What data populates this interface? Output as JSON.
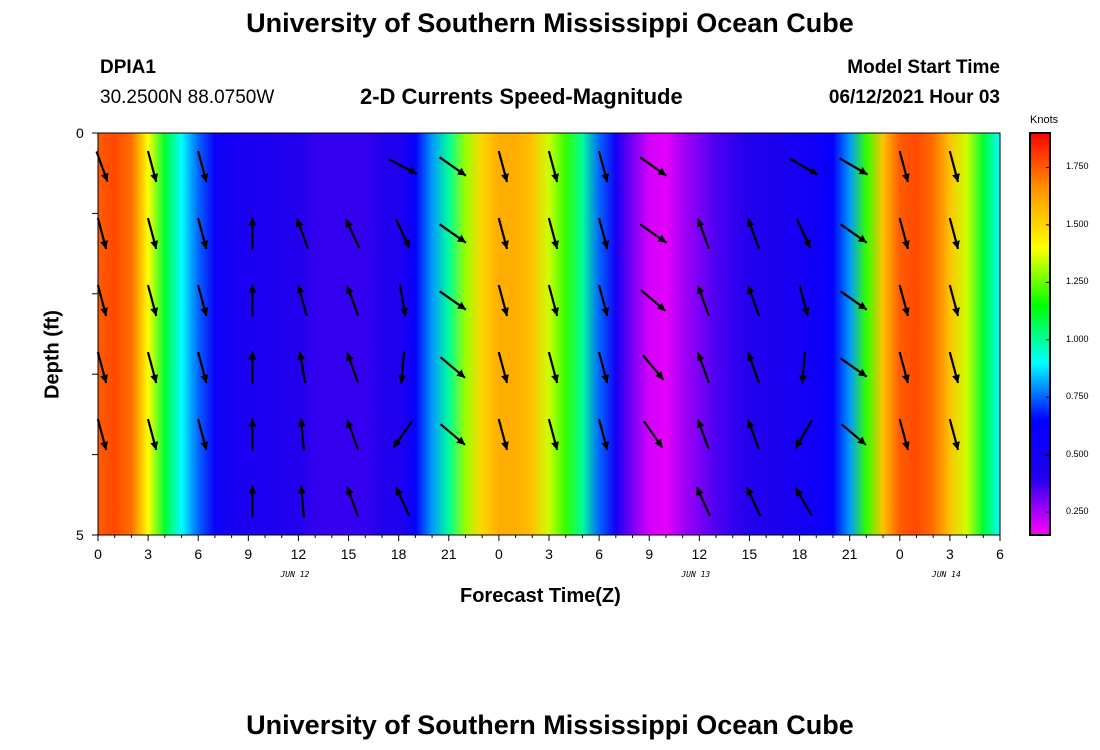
{
  "page": {
    "title_top": "University of Southern Mississippi Ocean Cube",
    "title_bottom": "University of Southern Mississippi Ocean Cube",
    "station_id": "DPIA1",
    "station_coords": "30.2500N  88.0750W",
    "chart_subtitle": "2-D Currents Speed-Magnitude",
    "model_start_label": "Model Start Time",
    "model_start_value": "06/12/2021 Hour 03"
  },
  "colors": {
    "arrow": "#000000",
    "axis": "#000000",
    "scale": [
      "#ff00ff",
      "#2200ee",
      "#0000ff",
      "#00ffff",
      "#00ff00",
      "#ffff00",
      "#ff9900",
      "#ff0000"
    ]
  },
  "chart_data": {
    "type": "heatmap",
    "title": "2-D Currents Speed-Magnitude",
    "xlabel": "Forecast Time(Z)",
    "ylabel": "Depth (ft)",
    "x_ticks": [
      "0",
      "3",
      "6",
      "9",
      "12",
      "15",
      "18",
      "21",
      "0",
      "3",
      "6",
      "9",
      "12",
      "15",
      "18",
      "21",
      "0",
      "3",
      "6"
    ],
    "x_range_hours": [
      0,
      54
    ],
    "date_labels": [
      {
        "text": "JUN 12",
        "hour": 12
      },
      {
        "text": "JUN 13",
        "hour": 36
      },
      {
        "text": "JUN 14",
        "hour": 51
      }
    ],
    "y_ticks": [
      "0",
      "5"
    ],
    "y_range": [
      0,
      5
    ],
    "depth_levels": 5,
    "colorbar": {
      "units": "Knots",
      "range": [
        0.15,
        1.9
      ],
      "ticks": [
        "1.750",
        "1.500",
        "1.250",
        "1.000",
        "0.750",
        "0.500",
        "0.250"
      ],
      "tick_values": [
        1.75,
        1.5,
        1.25,
        1.0,
        0.75,
        0.5,
        0.25
      ]
    },
    "profile_hours": [
      0,
      1,
      2,
      3,
      4,
      5,
      6,
      7,
      8,
      9,
      10,
      11,
      12,
      13,
      14,
      15,
      16,
      17,
      18,
      19,
      20,
      21,
      22,
      23,
      24,
      25,
      26,
      27,
      28,
      29,
      30,
      31,
      32,
      33,
      34,
      35,
      36,
      37,
      38,
      39,
      40,
      41,
      42,
      43,
      44,
      45,
      46,
      47,
      48,
      49,
      50,
      51,
      52,
      53,
      54
    ],
    "profile_speed": [
      1.75,
      1.78,
      1.72,
      1.4,
      1.1,
      0.9,
      0.75,
      0.55,
      0.5,
      0.45,
      0.45,
      0.42,
      0.4,
      0.38,
      0.38,
      0.38,
      0.38,
      0.4,
      0.42,
      0.6,
      0.8,
      1.0,
      1.3,
      1.5,
      1.6,
      1.6,
      1.55,
      1.35,
      1.2,
      1.0,
      0.75,
      0.5,
      0.3,
      0.2,
      0.18,
      0.25,
      0.3,
      0.35,
      0.38,
      0.4,
      0.42,
      0.45,
      0.5,
      0.55,
      0.62,
      0.8,
      1.2,
      1.55,
      1.75,
      1.78,
      1.72,
      1.55,
      1.35,
      1.1,
      0.9
    ],
    "vector_hours": [
      0,
      3,
      6,
      9,
      12,
      15,
      18,
      21,
      24,
      27,
      30,
      33,
      36,
      39,
      42,
      45,
      48,
      51
    ],
    "vector_angles_deg": [
      [
        20,
        15,
        15,
        null,
        null,
        null,
        62,
        55,
        15,
        15,
        15,
        55,
        null,
        null,
        60,
        60,
        15,
        15
      ],
      [
        15,
        15,
        15,
        -180,
        -160,
        -155,
        25,
        55,
        15,
        15,
        15,
        55,
        -160,
        -160,
        25,
        55,
        15,
        15
      ],
      [
        15,
        15,
        15,
        -180,
        -165,
        -160,
        10,
        55,
        15,
        15,
        15,
        50,
        -160,
        -160,
        15,
        55,
        15,
        15
      ],
      [
        15,
        15,
        15,
        -180,
        -170,
        -160,
        -5,
        50,
        15,
        15,
        15,
        40,
        -160,
        -160,
        -5,
        55,
        15,
        15
      ],
      [
        15,
        15,
        15,
        -180,
        -175,
        -160,
        -35,
        50,
        15,
        15,
        15,
        35,
        -160,
        -160,
        -30,
        50,
        15,
        15
      ],
      [
        null,
        null,
        null,
        -180,
        -175,
        -160,
        -155,
        null,
        null,
        null,
        null,
        null,
        -155,
        -155,
        -150,
        null,
        null,
        null
      ]
    ]
  }
}
